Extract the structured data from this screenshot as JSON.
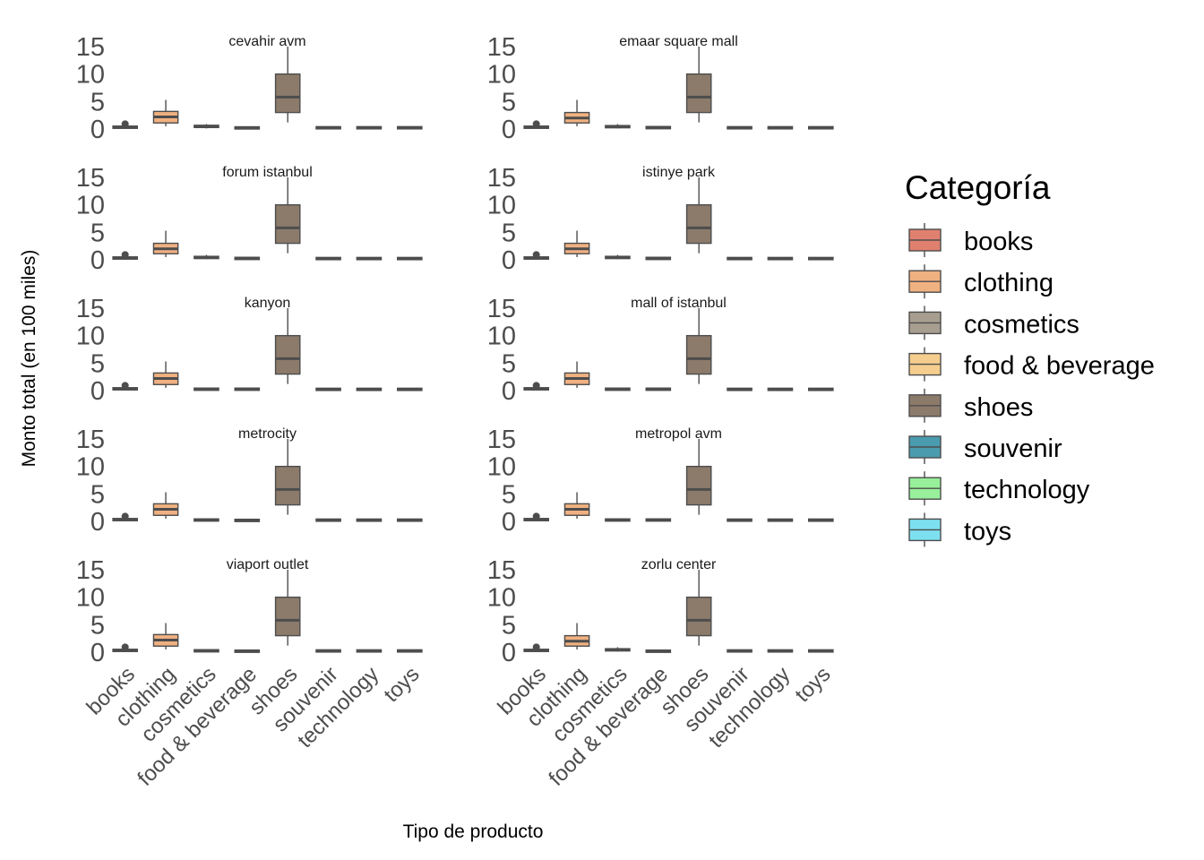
{
  "chart_data": {
    "type": "box",
    "xlabel": "Tipo de producto",
    "ylabel": "Monto total (en 100 miles)",
    "ylim": [
      0,
      15
    ],
    "yticks": [
      0,
      5,
      10,
      15
    ],
    "categories": [
      "books",
      "clothing",
      "cosmetics",
      "food & beverage",
      "shoes",
      "souvenir",
      "technology",
      "toys"
    ],
    "colors": {
      "books": "#E0806F",
      "clothing": "#F0B181",
      "cosmetics": "#A89E90",
      "food & beverage": "#F5CD8E",
      "shoes": "#8C7B6B",
      "souvenir": "#4A9BAE",
      "technology": "#98F09A",
      "toys": "#7DE0F0"
    },
    "legend": {
      "title": "Categoría",
      "position": "right",
      "entries": [
        "books",
        "clothing",
        "cosmetics",
        "food & beverage",
        "shoes",
        "souvenir",
        "technology",
        "toys"
      ]
    },
    "grid": false,
    "facets": [
      {
        "panel": "cevahir avm",
        "boxes": [
          {
            "category": "books",
            "min": 0.05,
            "q1": 0.2,
            "median": 0.3,
            "q3": 0.45,
            "max": 0.6,
            "outliers": [
              0.6
            ]
          },
          {
            "category": "clothing",
            "min": 0.5,
            "q1": 1.1,
            "median": 2.2,
            "q3": 3.2,
            "max": 5.3
          },
          {
            "category": "cosmetics",
            "min": 0.1,
            "q1": 0.3,
            "median": 0.45,
            "q3": 0.65,
            "max": 0.9
          },
          {
            "category": "food & beverage",
            "min": 0.02,
            "q1": 0.1,
            "median": 0.2,
            "q3": 0.3,
            "max": 0.45
          },
          {
            "category": "shoes",
            "min": 1.2,
            "q1": 3.0,
            "median": 5.8,
            "q3": 10.0,
            "max": 15.0
          },
          {
            "category": "souvenir",
            "min": 0.05,
            "q1": 0.15,
            "median": 0.2,
            "q3": 0.3,
            "max": 0.4
          },
          {
            "category": "technology",
            "min": 0.05,
            "q1": 0.15,
            "median": 0.2,
            "q3": 0.3,
            "max": 0.4
          },
          {
            "category": "toys",
            "min": 0.05,
            "q1": 0.15,
            "median": 0.2,
            "q3": 0.3,
            "max": 0.4
          }
        ]
      },
      {
        "panel": "emaar square mall",
        "boxes": [
          {
            "category": "books",
            "min": 0.05,
            "q1": 0.2,
            "median": 0.3,
            "q3": 0.45,
            "max": 0.6,
            "outliers": [
              0.6
            ]
          },
          {
            "category": "clothing",
            "min": 0.5,
            "q1": 1.1,
            "median": 2.0,
            "q3": 3.0,
            "max": 5.3
          },
          {
            "category": "cosmetics",
            "min": 0.1,
            "q1": 0.25,
            "median": 0.4,
            "q3": 0.6,
            "max": 0.9
          },
          {
            "category": "food & beverage",
            "min": 0.05,
            "q1": 0.15,
            "median": 0.25,
            "q3": 0.35,
            "max": 0.5
          },
          {
            "category": "shoes",
            "min": 1.2,
            "q1": 3.0,
            "median": 5.8,
            "q3": 10.0,
            "max": 15.0
          },
          {
            "category": "souvenir",
            "min": 0.05,
            "q1": 0.15,
            "median": 0.2,
            "q3": 0.3,
            "max": 0.4
          },
          {
            "category": "technology",
            "min": 0.05,
            "q1": 0.15,
            "median": 0.2,
            "q3": 0.3,
            "max": 0.4
          },
          {
            "category": "toys",
            "min": 0.05,
            "q1": 0.15,
            "median": 0.2,
            "q3": 0.3,
            "max": 0.4
          }
        ]
      },
      {
        "panel": "forum istanbul",
        "boxes": [
          {
            "category": "books",
            "min": 0.05,
            "q1": 0.2,
            "median": 0.3,
            "q3": 0.45,
            "max": 0.6,
            "outliers": [
              0.6
            ]
          },
          {
            "category": "clothing",
            "min": 0.5,
            "q1": 1.1,
            "median": 2.0,
            "q3": 3.0,
            "max": 5.3
          },
          {
            "category": "cosmetics",
            "min": 0.1,
            "q1": 0.25,
            "median": 0.4,
            "q3": 0.6,
            "max": 0.9
          },
          {
            "category": "food & beverage",
            "min": 0.05,
            "q1": 0.15,
            "median": 0.25,
            "q3": 0.35,
            "max": 0.5
          },
          {
            "category": "shoes",
            "min": 1.2,
            "q1": 3.0,
            "median": 5.8,
            "q3": 10.0,
            "max": 15.0
          },
          {
            "category": "souvenir",
            "min": 0.05,
            "q1": 0.15,
            "median": 0.2,
            "q3": 0.3,
            "max": 0.4
          },
          {
            "category": "technology",
            "min": 0.05,
            "q1": 0.15,
            "median": 0.2,
            "q3": 0.3,
            "max": 0.4
          },
          {
            "category": "toys",
            "min": 0.05,
            "q1": 0.15,
            "median": 0.2,
            "q3": 0.3,
            "max": 0.4
          }
        ]
      },
      {
        "panel": "istinye park",
        "boxes": [
          {
            "category": "books",
            "min": 0.05,
            "q1": 0.2,
            "median": 0.3,
            "q3": 0.45,
            "max": 0.6,
            "outliers": [
              0.6
            ]
          },
          {
            "category": "clothing",
            "min": 0.5,
            "q1": 1.1,
            "median": 2.0,
            "q3": 3.0,
            "max": 5.3
          },
          {
            "category": "cosmetics",
            "min": 0.1,
            "q1": 0.25,
            "median": 0.4,
            "q3": 0.6,
            "max": 0.9
          },
          {
            "category": "food & beverage",
            "min": 0.05,
            "q1": 0.15,
            "median": 0.25,
            "q3": 0.35,
            "max": 0.5
          },
          {
            "category": "shoes",
            "min": 1.2,
            "q1": 3.0,
            "median": 5.8,
            "q3": 10.0,
            "max": 15.0
          },
          {
            "category": "souvenir",
            "min": 0.05,
            "q1": 0.15,
            "median": 0.2,
            "q3": 0.3,
            "max": 0.4
          },
          {
            "category": "technology",
            "min": 0.05,
            "q1": 0.15,
            "median": 0.2,
            "q3": 0.3,
            "max": 0.4
          },
          {
            "category": "toys",
            "min": 0.05,
            "q1": 0.15,
            "median": 0.2,
            "q3": 0.3,
            "max": 0.4
          }
        ]
      },
      {
        "panel": "kanyon",
        "boxes": [
          {
            "category": "books",
            "min": 0.05,
            "q1": 0.2,
            "median": 0.3,
            "q3": 0.45,
            "max": 0.6,
            "outliers": [
              0.6
            ]
          },
          {
            "category": "clothing",
            "min": 0.5,
            "q1": 1.1,
            "median": 2.2,
            "q3": 3.2,
            "max": 5.3
          },
          {
            "category": "cosmetics",
            "min": 0.05,
            "q1": 0.15,
            "median": 0.25,
            "q3": 0.35,
            "max": 0.5
          },
          {
            "category": "food & beverage",
            "min": 0.05,
            "q1": 0.15,
            "median": 0.25,
            "q3": 0.35,
            "max": 0.5
          },
          {
            "category": "shoes",
            "min": 1.2,
            "q1": 3.0,
            "median": 5.8,
            "q3": 10.0,
            "max": 15.0
          },
          {
            "category": "souvenir",
            "min": 0.05,
            "q1": 0.15,
            "median": 0.2,
            "q3": 0.3,
            "max": 0.4
          },
          {
            "category": "technology",
            "min": 0.05,
            "q1": 0.15,
            "median": 0.2,
            "q3": 0.3,
            "max": 0.4
          },
          {
            "category": "toys",
            "min": 0.05,
            "q1": 0.15,
            "median": 0.2,
            "q3": 0.3,
            "max": 0.4
          }
        ]
      },
      {
        "panel": "mall of istanbul",
        "boxes": [
          {
            "category": "books",
            "min": 0.05,
            "q1": 0.2,
            "median": 0.3,
            "q3": 0.45,
            "max": 0.6,
            "outliers": [
              0.6
            ]
          },
          {
            "category": "clothing",
            "min": 0.5,
            "q1": 1.1,
            "median": 2.2,
            "q3": 3.2,
            "max": 5.3
          },
          {
            "category": "cosmetics",
            "min": 0.05,
            "q1": 0.15,
            "median": 0.25,
            "q3": 0.35,
            "max": 0.5
          },
          {
            "category": "food & beverage",
            "min": 0.05,
            "q1": 0.15,
            "median": 0.25,
            "q3": 0.35,
            "max": 0.5
          },
          {
            "category": "shoes",
            "min": 1.2,
            "q1": 3.0,
            "median": 5.8,
            "q3": 10.0,
            "max": 15.0
          },
          {
            "category": "souvenir",
            "min": 0.05,
            "q1": 0.15,
            "median": 0.2,
            "q3": 0.3,
            "max": 0.4
          },
          {
            "category": "technology",
            "min": 0.05,
            "q1": 0.15,
            "median": 0.2,
            "q3": 0.3,
            "max": 0.4
          },
          {
            "category": "toys",
            "min": 0.05,
            "q1": 0.15,
            "median": 0.2,
            "q3": 0.3,
            "max": 0.4
          }
        ]
      },
      {
        "panel": "metrocity",
        "boxes": [
          {
            "category": "books",
            "min": 0.05,
            "q1": 0.2,
            "median": 0.3,
            "q3": 0.45,
            "max": 0.6,
            "outliers": [
              0.6
            ]
          },
          {
            "category": "clothing",
            "min": 0.5,
            "q1": 1.1,
            "median": 2.2,
            "q3": 3.2,
            "max": 5.3
          },
          {
            "category": "cosmetics",
            "min": 0.05,
            "q1": 0.15,
            "median": 0.25,
            "q3": 0.35,
            "max": 0.5
          },
          {
            "category": "food & beverage",
            "min": 0.02,
            "q1": 0.1,
            "median": 0.15,
            "q3": 0.25,
            "max": 0.35
          },
          {
            "category": "shoes",
            "min": 1.2,
            "q1": 3.0,
            "median": 5.8,
            "q3": 10.0,
            "max": 15.0
          },
          {
            "category": "souvenir",
            "min": 0.05,
            "q1": 0.15,
            "median": 0.2,
            "q3": 0.3,
            "max": 0.4
          },
          {
            "category": "technology",
            "min": 0.05,
            "q1": 0.15,
            "median": 0.2,
            "q3": 0.3,
            "max": 0.4
          },
          {
            "category": "toys",
            "min": 0.05,
            "q1": 0.15,
            "median": 0.2,
            "q3": 0.3,
            "max": 0.4
          }
        ]
      },
      {
        "panel": "metropol avm",
        "boxes": [
          {
            "category": "books",
            "min": 0.05,
            "q1": 0.2,
            "median": 0.3,
            "q3": 0.45,
            "max": 0.6,
            "outliers": [
              0.6
            ]
          },
          {
            "category": "clothing",
            "min": 0.5,
            "q1": 1.1,
            "median": 2.2,
            "q3": 3.2,
            "max": 5.3
          },
          {
            "category": "cosmetics",
            "min": 0.05,
            "q1": 0.15,
            "median": 0.25,
            "q3": 0.35,
            "max": 0.5
          },
          {
            "category": "food & beverage",
            "min": 0.05,
            "q1": 0.15,
            "median": 0.25,
            "q3": 0.35,
            "max": 0.5
          },
          {
            "category": "shoes",
            "min": 1.2,
            "q1": 3.0,
            "median": 5.8,
            "q3": 10.0,
            "max": 15.0
          },
          {
            "category": "souvenir",
            "min": 0.05,
            "q1": 0.15,
            "median": 0.2,
            "q3": 0.3,
            "max": 0.4
          },
          {
            "category": "technology",
            "min": 0.05,
            "q1": 0.15,
            "median": 0.2,
            "q3": 0.3,
            "max": 0.4
          },
          {
            "category": "toys",
            "min": 0.05,
            "q1": 0.15,
            "median": 0.2,
            "q3": 0.3,
            "max": 0.4
          }
        ]
      },
      {
        "panel": "viaport outlet",
        "boxes": [
          {
            "category": "books",
            "min": 0.05,
            "q1": 0.2,
            "median": 0.3,
            "q3": 0.45,
            "max": 0.6,
            "outliers": [
              0.6
            ]
          },
          {
            "category": "clothing",
            "min": 0.5,
            "q1": 1.1,
            "median": 2.2,
            "q3": 3.2,
            "max": 5.3
          },
          {
            "category": "cosmetics",
            "min": 0.05,
            "q1": 0.15,
            "median": 0.25,
            "q3": 0.35,
            "max": 0.5
          },
          {
            "category": "food & beverage",
            "min": 0.02,
            "q1": 0.1,
            "median": 0.15,
            "q3": 0.25,
            "max": 0.35
          },
          {
            "category": "shoes",
            "min": 1.2,
            "q1": 3.0,
            "median": 5.8,
            "q3": 10.0,
            "max": 15.0
          },
          {
            "category": "souvenir",
            "min": 0.05,
            "q1": 0.15,
            "median": 0.2,
            "q3": 0.3,
            "max": 0.4
          },
          {
            "category": "technology",
            "min": 0.05,
            "q1": 0.15,
            "median": 0.2,
            "q3": 0.3,
            "max": 0.4
          },
          {
            "category": "toys",
            "min": 0.05,
            "q1": 0.15,
            "median": 0.2,
            "q3": 0.3,
            "max": 0.4
          }
        ]
      },
      {
        "panel": "zorlu center",
        "boxes": [
          {
            "category": "books",
            "min": 0.05,
            "q1": 0.2,
            "median": 0.3,
            "q3": 0.45,
            "max": 0.6,
            "outliers": [
              0.6
            ]
          },
          {
            "category": "clothing",
            "min": 0.5,
            "q1": 1.1,
            "median": 2.0,
            "q3": 3.0,
            "max": 5.3
          },
          {
            "category": "cosmetics",
            "min": 0.1,
            "q1": 0.25,
            "median": 0.4,
            "q3": 0.6,
            "max": 0.9
          },
          {
            "category": "food & beverage",
            "min": 0.02,
            "q1": 0.1,
            "median": 0.15,
            "q3": 0.25,
            "max": 0.35
          },
          {
            "category": "shoes",
            "min": 1.2,
            "q1": 3.0,
            "median": 5.8,
            "q3": 10.0,
            "max": 15.0
          },
          {
            "category": "souvenir",
            "min": 0.05,
            "q1": 0.15,
            "median": 0.2,
            "q3": 0.3,
            "max": 0.4
          },
          {
            "category": "technology",
            "min": 0.05,
            "q1": 0.15,
            "median": 0.2,
            "q3": 0.3,
            "max": 0.4
          },
          {
            "category": "toys",
            "min": 0.05,
            "q1": 0.15,
            "median": 0.2,
            "q3": 0.3,
            "max": 0.4
          }
        ]
      }
    ]
  }
}
